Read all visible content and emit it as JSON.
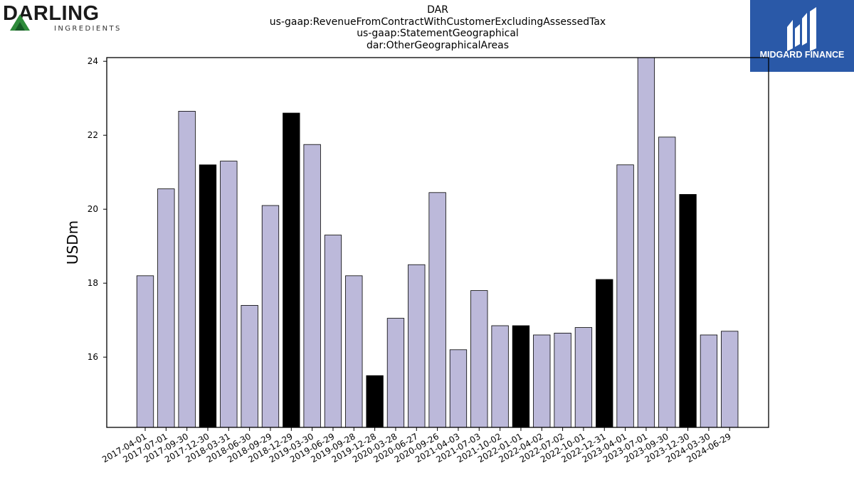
{
  "header": {
    "title_lines": [
      "DAR",
      "us-gaap:RevenueFromContractWithCustomerExcludingAssessedTax",
      "us-gaap:StatementGeographical",
      "dar:OtherGeographicalAreas"
    ]
  },
  "logos": {
    "left": {
      "name": "DARLING",
      "subtext": "INGREDIENTS",
      "colors": [
        "#1a1a1a",
        "#2e8b3a",
        "#145a23"
      ]
    },
    "right": {
      "name": "MIDGARD FINANCE",
      "background": "#2a59a8"
    }
  },
  "chart_data": {
    "type": "bar",
    "title": "",
    "xlabel": "",
    "ylabel": "USDm",
    "ylim": [
      14.1,
      24.1
    ],
    "yticks": [
      16,
      18,
      20,
      22,
      24
    ],
    "grid": false,
    "legend": "none",
    "colors": {
      "default": "#bcb9da",
      "highlight": "#000000",
      "edge": "#000000"
    },
    "categories": [
      "2017-04-01",
      "2017-07-01",
      "2017-09-30",
      "2017-12-30",
      "2018-03-31",
      "2018-06-30",
      "2018-09-29",
      "2018-12-29",
      "2019-03-30",
      "2019-06-29",
      "2019-09-28",
      "2019-12-28",
      "2020-03-28",
      "2020-06-27",
      "2020-09-26",
      "2021-04-03",
      "2021-07-03",
      "2021-10-02",
      "2022-01-01",
      "2022-04-02",
      "2022-07-02",
      "2022-10-01",
      "2022-12-31",
      "2023-04-01",
      "2023-07-01",
      "2023-09-30",
      "2023-12-30",
      "2024-03-30",
      "2024-06-29"
    ],
    "values": [
      18.2,
      20.55,
      22.65,
      21.2,
      21.3,
      17.4,
      20.1,
      22.6,
      21.75,
      19.3,
      18.2,
      15.5,
      17.05,
      18.5,
      20.45,
      16.2,
      17.8,
      16.85,
      16.85,
      16.6,
      16.65,
      16.8,
      18.1,
      21.2,
      24.1,
      21.95,
      20.4,
      16.6,
      16.7
    ],
    "highlight": [
      false,
      false,
      false,
      true,
      false,
      false,
      false,
      true,
      false,
      false,
      false,
      true,
      false,
      false,
      false,
      false,
      false,
      false,
      true,
      false,
      false,
      false,
      true,
      false,
      false,
      false,
      true,
      false,
      false
    ]
  }
}
